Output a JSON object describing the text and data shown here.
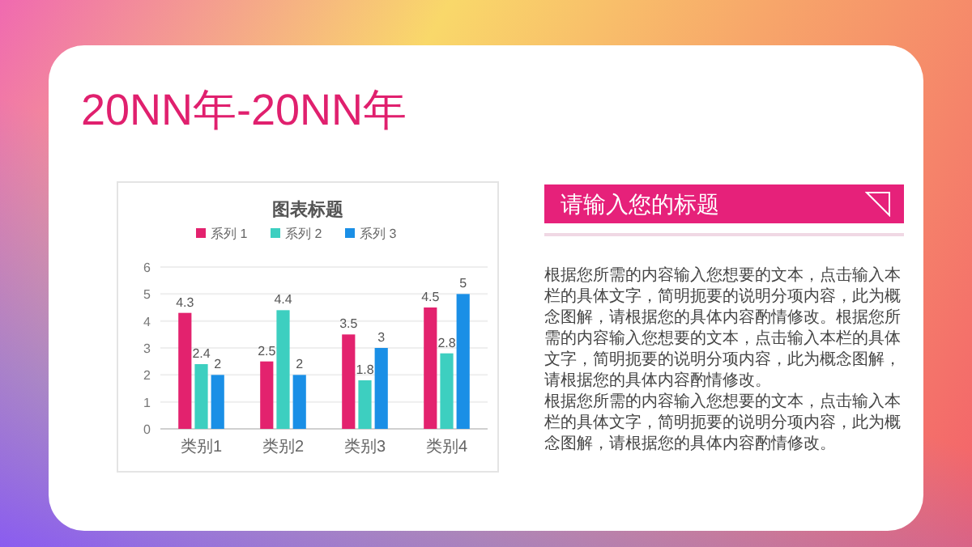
{
  "chart_data": [
    {
      "type": "other",
      "title": "20NN年-20NN年"
    },
    {
      "type": "bar",
      "title": "图表标题",
      "categories": [
        "类别1",
        "类别2",
        "类别3",
        "类别4"
      ],
      "series": [
        {
          "name": "系列 1",
          "color": "#e3226e",
          "values": [
            4.3,
            2.5,
            3.5,
            4.5
          ]
        },
        {
          "name": "系列 2",
          "color": "#3dcfc0",
          "values": [
            2.4,
            4.4,
            1.8,
            2.8
          ]
        },
        {
          "name": "系列 3",
          "color": "#1a8fe6",
          "values": [
            2,
            2,
            3,
            5
          ]
        }
      ],
      "ylim": [
        0,
        6
      ],
      "yticks": [
        0,
        1,
        2,
        3,
        4,
        5,
        6
      ],
      "grid": "y",
      "legend": "top",
      "data_labels": true
    },
    {
      "type": "other",
      "title": "请输入您的标题",
      "annotations": [
        "根据您所需的内容输入您想要的文本，点击输入本栏的具体文字，简明扼要的说明分项内容，此为概念图解，请根据您的具体内容酌情修改。根据您所需的内容输入您想要的文本，点击输入本栏的具体文字，简明扼要的说明分项内容，此为概念图解，请根据您的具体内容酌情修改。",
        "根据您所需的内容输入您想要的文本，点击输入本栏的具体文字，简明扼要的说明分项内容，此为概念图解，请根据您的具体内容酌情修改。"
      ]
    }
  ]
}
